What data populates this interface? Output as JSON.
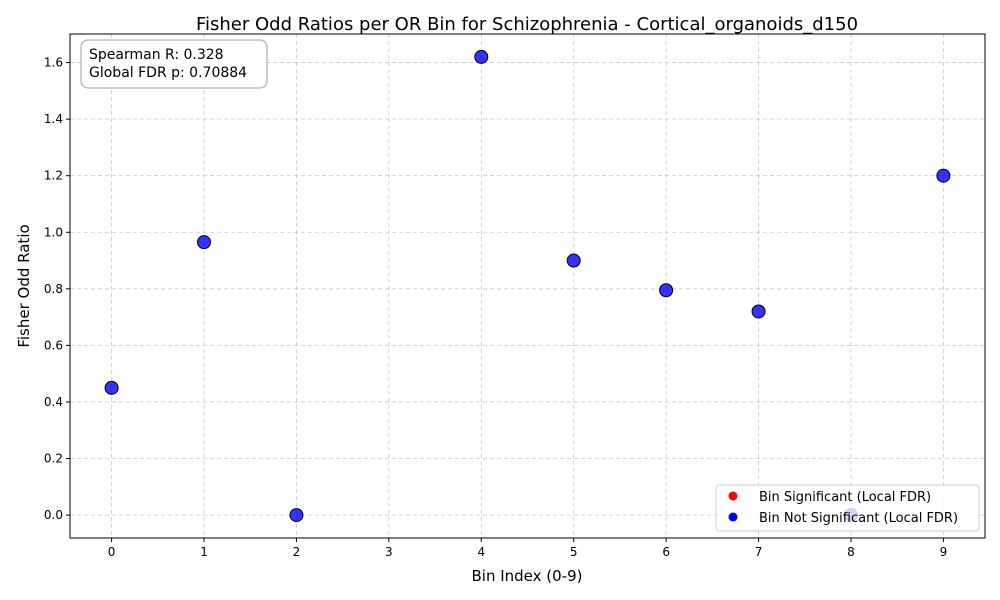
{
  "chart_data": {
    "type": "scatter",
    "title": "Fisher Odd Ratios per OR Bin for Schizophrenia - Cortical_organoids_d150",
    "xlabel": "Bin Index (0-9)",
    "ylabel": "Fisher Odd Ratio",
    "xlim": [
      -0.45,
      9.45
    ],
    "ylim": [
      -0.081,
      1.701
    ],
    "xticks": [
      0,
      1,
      2,
      3,
      4,
      5,
      6,
      7,
      8,
      9
    ],
    "yticks": [
      0.0,
      0.2,
      0.4,
      0.6,
      0.8,
      1.0,
      1.2,
      1.4,
      1.6
    ],
    "ytick_labels": [
      "0.0",
      "0.2",
      "0.4",
      "0.6",
      "0.8",
      "1.0",
      "1.2",
      "1.4",
      "1.6"
    ],
    "grid": true,
    "legend_position": "lower-right",
    "series": [
      {
        "name": "Bin Significant (Local FDR)",
        "color": "#ff0000",
        "points": []
      },
      {
        "name": "Bin Not Significant (Local FDR)",
        "color": "#0000ff",
        "points": [
          {
            "x": 0,
            "y": 0.45
          },
          {
            "x": 1,
            "y": 0.965
          },
          {
            "x": 2,
            "y": 0.0
          },
          {
            "x": 4,
            "y": 1.62
          },
          {
            "x": 5,
            "y": 0.9
          },
          {
            "x": 6,
            "y": 0.795
          },
          {
            "x": 7,
            "y": 0.72
          },
          {
            "x": 8,
            "y": 0.0
          },
          {
            "x": 9,
            "y": 1.2
          }
        ]
      }
    ],
    "annotation": {
      "lines": [
        "Spearman R: 0.328",
        "Global FDR p: 0.70884"
      ],
      "position": "top-left"
    }
  }
}
